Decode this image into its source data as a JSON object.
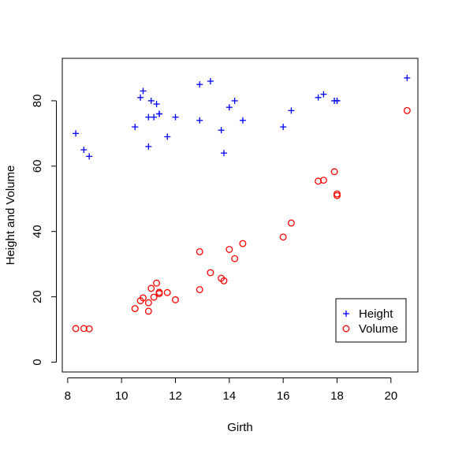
{
  "chart_data": {
    "type": "scatter",
    "title": "",
    "xlabel": "Girth",
    "ylabel": "Height and Volume",
    "xlim": [
      7.8,
      21.0
    ],
    "ylim": [
      -3,
      93
    ],
    "xticks": [
      8,
      10,
      12,
      14,
      16,
      18,
      20
    ],
    "yticks": [
      0,
      20,
      40,
      60,
      80
    ],
    "grid": false,
    "legend_position": "bottom-right",
    "series": [
      {
        "name": "Height",
        "marker": "plus",
        "color": "#0000ff",
        "points": [
          [
            8.3,
            70
          ],
          [
            8.6,
            65
          ],
          [
            8.8,
            63
          ],
          [
            10.5,
            72
          ],
          [
            10.7,
            81
          ],
          [
            10.8,
            83
          ],
          [
            11.0,
            66
          ],
          [
            11.0,
            75
          ],
          [
            11.1,
            80
          ],
          [
            11.2,
            75
          ],
          [
            11.3,
            79
          ],
          [
            11.4,
            76
          ],
          [
            11.4,
            76
          ],
          [
            11.7,
            69
          ],
          [
            12.0,
            75
          ],
          [
            12.9,
            74
          ],
          [
            12.9,
            85
          ],
          [
            13.3,
            86
          ],
          [
            13.7,
            71
          ],
          [
            13.8,
            64
          ],
          [
            14.0,
            78
          ],
          [
            14.2,
            80
          ],
          [
            14.5,
            74
          ],
          [
            16.0,
            72
          ],
          [
            16.3,
            77
          ],
          [
            17.3,
            81
          ],
          [
            17.5,
            82
          ],
          [
            17.9,
            80
          ],
          [
            18.0,
            80
          ],
          [
            18.0,
            80
          ],
          [
            20.6,
            87
          ]
        ]
      },
      {
        "name": "Volume",
        "marker": "circle",
        "color": "#ff0000",
        "points": [
          [
            8.3,
            10.3
          ],
          [
            8.6,
            10.3
          ],
          [
            8.8,
            10.2
          ],
          [
            10.5,
            16.4
          ],
          [
            10.7,
            18.8
          ],
          [
            10.8,
            19.7
          ],
          [
            11.0,
            15.6
          ],
          [
            11.0,
            18.2
          ],
          [
            11.1,
            22.6
          ],
          [
            11.2,
            19.9
          ],
          [
            11.3,
            24.2
          ],
          [
            11.4,
            21.0
          ],
          [
            11.4,
            21.4
          ],
          [
            11.7,
            21.3
          ],
          [
            12.0,
            19.1
          ],
          [
            12.9,
            22.2
          ],
          [
            12.9,
            33.8
          ],
          [
            13.3,
            27.4
          ],
          [
            13.7,
            25.7
          ],
          [
            13.8,
            24.9
          ],
          [
            14.0,
            34.5
          ],
          [
            14.2,
            31.7
          ],
          [
            14.5,
            36.3
          ],
          [
            16.0,
            38.3
          ],
          [
            16.3,
            42.6
          ],
          [
            17.3,
            55.4
          ],
          [
            17.5,
            55.7
          ],
          [
            17.9,
            58.3
          ],
          [
            18.0,
            51.5
          ],
          [
            18.0,
            51.0
          ],
          [
            20.6,
            77.0
          ]
        ]
      }
    ]
  }
}
